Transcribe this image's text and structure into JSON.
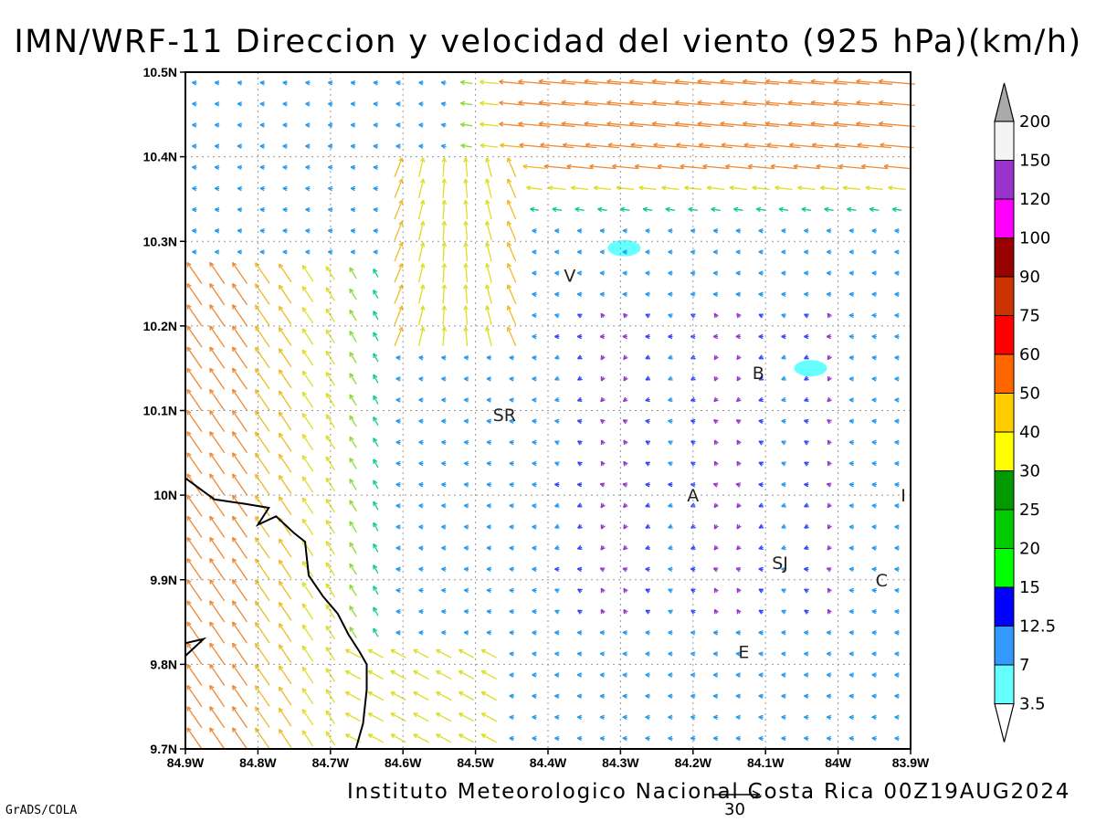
{
  "title": "IMN/WRF-11 Direccion y velocidad del viento (925 hPa)(km/h)",
  "footer": "Instituto Meteorologico Nacional Costa Rica 00Z19AUG2024",
  "software": "GrADS/COLA",
  "reference_vector": {
    "value": "30"
  },
  "map": {
    "lon_range": [
      -84.9,
      -83.9
    ],
    "lat_range": [
      9.7,
      10.5
    ],
    "lon_ticks": [
      {
        "value": -84.9,
        "label": "84.9W"
      },
      {
        "value": -84.8,
        "label": "84.8W"
      },
      {
        "value": -84.7,
        "label": "84.7W"
      },
      {
        "value": -84.6,
        "label": "84.6W"
      },
      {
        "value": -84.5,
        "label": "84.5W"
      },
      {
        "value": -84.4,
        "label": "84.4W"
      },
      {
        "value": -84.3,
        "label": "84.3W"
      },
      {
        "value": -84.2,
        "label": "84.2W"
      },
      {
        "value": -84.1,
        "label": "84.1W"
      },
      {
        "value": -84.0,
        "label": "84W"
      },
      {
        "value": -83.9,
        "label": "83.9W"
      }
    ],
    "lat_ticks": [
      {
        "value": 10.5,
        "label": "10.5N"
      },
      {
        "value": 10.4,
        "label": "10.4N"
      },
      {
        "value": 10.3,
        "label": "10.3N"
      },
      {
        "value": 10.2,
        "label": "10.2N"
      },
      {
        "value": 10.1,
        "label": "10.1N"
      },
      {
        "value": 10.0,
        "label": "10N"
      },
      {
        "value": 9.9,
        "label": "9.9N"
      },
      {
        "value": 9.8,
        "label": "9.8N"
      },
      {
        "value": 9.7,
        "label": "9.7N"
      }
    ],
    "city_labels": [
      {
        "label": "V",
        "lon": -84.37,
        "lat": 10.26
      },
      {
        "label": "SR",
        "lon": -84.46,
        "lat": 10.095
      },
      {
        "label": "B",
        "lon": -84.11,
        "lat": 10.145
      },
      {
        "label": "A",
        "lon": -84.2,
        "lat": 10.0
      },
      {
        "label": "I",
        "lon": -83.91,
        "lat": 10.0
      },
      {
        "label": "SJ",
        "lon": -84.08,
        "lat": 9.92
      },
      {
        "label": "C",
        "lon": -83.94,
        "lat": 9.9
      },
      {
        "label": "E",
        "lon": -84.13,
        "lat": 9.815
      }
    ],
    "coastline": [
      [
        -84.9,
        10.02
      ],
      [
        -84.86,
        9.995
      ],
      [
        -84.82,
        9.99
      ],
      [
        -84.785,
        9.985
      ],
      [
        -84.8,
        9.965
      ],
      [
        -84.775,
        9.975
      ],
      [
        -84.75,
        9.955
      ],
      [
        -84.735,
        9.945
      ],
      [
        -84.73,
        9.905
      ],
      [
        -84.71,
        9.88
      ],
      [
        -84.69,
        9.86
      ],
      [
        -84.675,
        9.835
      ],
      [
        -84.66,
        9.815
      ],
      [
        -84.65,
        9.8
      ],
      [
        -84.65,
        9.77
      ],
      [
        -84.655,
        9.73
      ],
      [
        -84.665,
        9.7
      ]
    ],
    "coastline_nw": [
      [
        -84.9,
        9.825
      ],
      [
        -84.875,
        9.83
      ],
      [
        -84.9,
        9.81
      ]
    ]
  },
  "colorbar": {
    "levels": [
      "3.5",
      "7",
      "12.5",
      "15",
      "20",
      "25",
      "30",
      "40",
      "50",
      "60",
      "75",
      "90",
      "100",
      "120",
      "150",
      "200"
    ],
    "colors": [
      "#66ffff",
      "#3399ff",
      "#0000ff",
      "#00ff00",
      "#00cc00",
      "#009900",
      "#ffff00",
      "#ffcc00",
      "#ff6600",
      "#ff0000",
      "#cc3300",
      "#990000",
      "#ff00ff",
      "#9933cc",
      "#f4f4f4",
      "#aaaaaa"
    ]
  },
  "shaded_areas": [
    {
      "lon": -84.295,
      "lat": 10.292,
      "speed_class": "3.5"
    },
    {
      "lon": -84.038,
      "lat": 10.15,
      "speed_class": "3.5"
    }
  ]
}
